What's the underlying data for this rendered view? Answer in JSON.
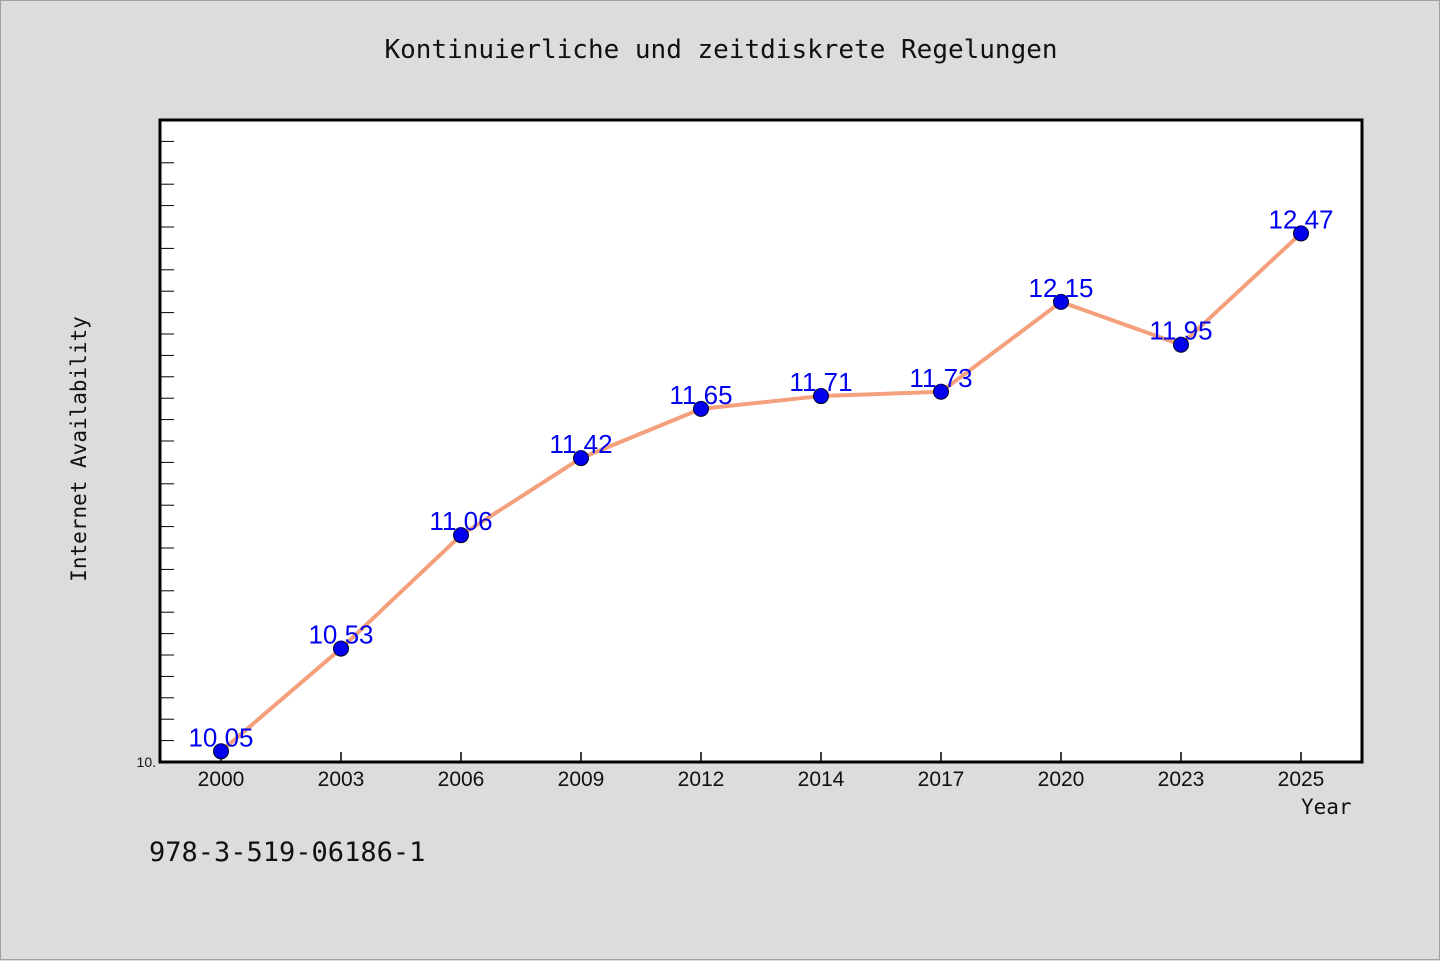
{
  "chart_data": {
    "type": "line",
    "title": "Kontinuierliche und zeitdiskrete Regelungen",
    "xlabel": "Year",
    "ylabel": "Internet Availability",
    "categories": [
      "2000",
      "2003",
      "2006",
      "2009",
      "2012",
      "2014",
      "2017",
      "2020",
      "2023",
      "2025"
    ],
    "series": [
      {
        "values": [
          10.05,
          10.53,
          11.06,
          11.42,
          11.65,
          11.71,
          11.73,
          12.15,
          11.95,
          12.47
        ]
      }
    ],
    "data_labels": [
      "10.05",
      "10.53",
      "11.06",
      "11.42",
      "11.65",
      "11.71",
      "11.73",
      "12.15",
      "11.95",
      "12.47"
    ],
    "ytick_label": "10.",
    "ylim": [
      10.0,
      13.0
    ],
    "line_color": "#f4a07c",
    "marker_color": "#0000ee",
    "label_color": "#0000ee",
    "grid": false,
    "legend": "none"
  },
  "footer": {
    "isbn": "978-3-519-06186-1"
  }
}
